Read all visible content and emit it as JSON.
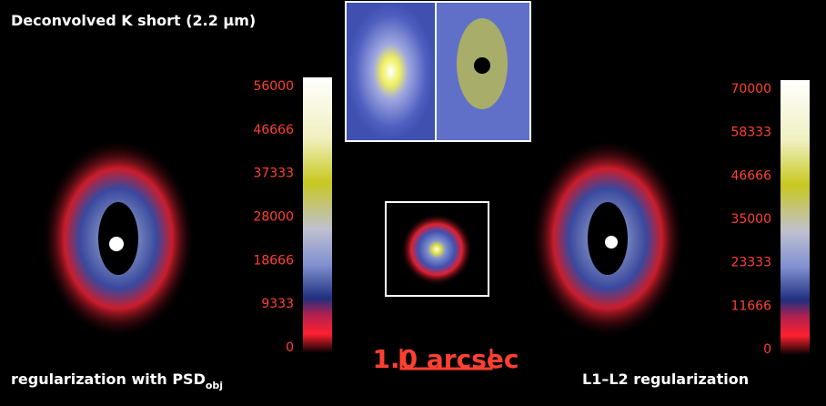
{
  "title": "Deconvolved K short (2.2 µm)",
  "panels": [
    {
      "label": "regularization with PSD",
      "label_sub": "obj",
      "colorbar": {
        "lim": [
          0,
          56000
        ],
        "ticks": [
          0,
          9333,
          18666,
          28000,
          37333,
          46666,
          56000
        ]
      }
    },
    {
      "label": "L1–L2 regularization",
      "colorbar": {
        "lim": [
          0,
          70000
        ],
        "ticks": [
          0,
          11666,
          23333,
          35000,
          46666,
          58333,
          70000
        ]
      }
    }
  ],
  "scale_bar": "1.0 arcsec"
}
